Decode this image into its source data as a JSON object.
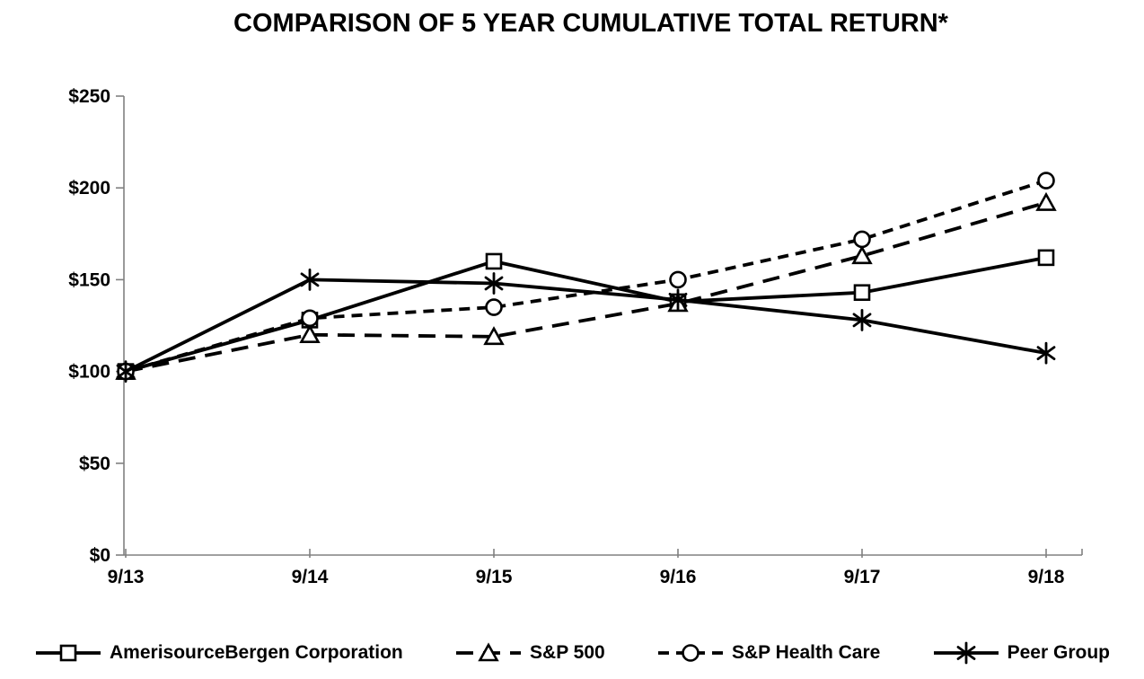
{
  "title": "COMPARISON OF 5 YEAR CUMULATIVE TOTAL RETURN*",
  "chart_data": {
    "type": "line",
    "title": "COMPARISON OF 5 YEAR CUMULATIVE TOTAL RETURN*",
    "x": [
      "9/13",
      "9/14",
      "9/15",
      "9/16",
      "9/17",
      "9/18"
    ],
    "series": [
      {
        "name": "AmerisourceBergen Corporation",
        "marker": "square",
        "line": "solid",
        "values": [
          100,
          128,
          160,
          138,
          143,
          162
        ]
      },
      {
        "name": "S&P 500",
        "marker": "triangle",
        "line": "long-dash",
        "values": [
          100,
          120,
          119,
          137,
          163,
          192
        ]
      },
      {
        "name": "S&P Health Care",
        "marker": "circle",
        "line": "dash",
        "values": [
          100,
          129,
          135,
          150,
          172,
          204
        ]
      },
      {
        "name": "Peer Group",
        "marker": "asterisk",
        "line": "solid",
        "values": [
          100,
          150,
          148,
          139,
          128,
          110
        ]
      }
    ],
    "ylim": [
      0,
      250
    ],
    "ytick_step": 50,
    "ytick_labels": [
      "$0",
      "$50",
      "$100",
      "$150",
      "$200",
      "$250"
    ],
    "xlabel": "",
    "ylabel": "",
    "grid": false,
    "legend_position": "bottom",
    "colors": {
      "series": "#000000",
      "axis": "#808080",
      "text": "#000000",
      "background": "#ffffff"
    }
  }
}
